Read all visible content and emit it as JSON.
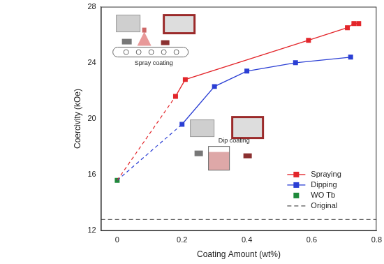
{
  "chart_data": {
    "type": "line",
    "x_label": "Coating Amount (wt%)",
    "y_label": "Coercivity (kOe)",
    "xlim": [
      -0.05,
      0.8
    ],
    "xticks": [
      0,
      0.2,
      0.4,
      0.6,
      0.8
    ],
    "ylim": [
      12,
      28
    ],
    "yticks": [
      12,
      16,
      20,
      24,
      28
    ],
    "grid": false,
    "legend": "lower right",
    "annotations": [
      "Spray coating",
      "Dip coating"
    ],
    "series": [
      {
        "name": "Spraying",
        "type": "line",
        "color": "#e3262b",
        "marker": "square",
        "line_style": "solid",
        "x": [
          0.18,
          0.21,
          0.59,
          0.71,
          0.73,
          0.745
        ],
        "values": [
          21.6,
          22.8,
          25.6,
          26.5,
          26.8,
          26.8
        ]
      },
      {
        "name": "Dipping",
        "type": "line",
        "color": "#2b3fd4",
        "marker": "square",
        "line_style": "solid",
        "x": [
          0.2,
          0.3,
          0.4,
          0.55,
          0.72
        ],
        "values": [
          19.6,
          22.3,
          23.4,
          24.0,
          24.4
        ]
      },
      {
        "name": "WO Tb",
        "type": "scatter",
        "color": "#1f8a3b",
        "marker": "square",
        "x": [
          0
        ],
        "values": [
          15.6
        ]
      },
      {
        "name": "Original",
        "type": "line",
        "color": "#555555",
        "marker": "none",
        "line_style": "dashed",
        "x": [
          -0.05,
          0.8
        ],
        "values": [
          12.8,
          12.8
        ]
      }
    ]
  }
}
